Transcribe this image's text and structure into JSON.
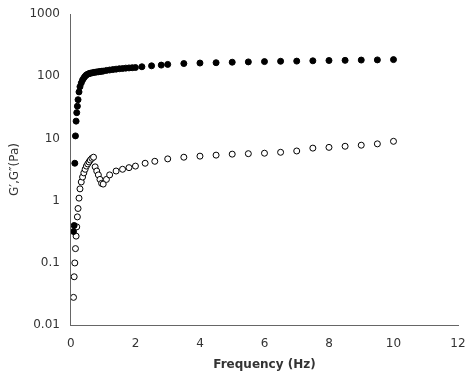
{
  "chart_data": {
    "type": "scatter",
    "x_label": "Frequency (Hz)",
    "y_label": "G′,G″(Pa)",
    "log": "y",
    "grid": false,
    "xlim": [
      0,
      12
    ],
    "xticks": [
      0,
      2,
      4,
      6,
      8,
      10,
      12
    ],
    "ylim": [
      0.01,
      1000
    ],
    "yticks": [
      0.01,
      0.1,
      1,
      10,
      100,
      1000
    ],
    "series": [
      {
        "color": "#000000",
        "marker": "circle",
        "x": [
          0.08,
          0.1,
          0.12,
          0.14,
          0.16,
          0.18,
          0.2,
          0.22,
          0.25,
          0.28,
          0.32,
          0.36,
          0.4,
          0.44,
          0.48,
          0.52,
          0.56,
          0.6,
          0.65,
          0.7,
          0.75,
          0.8,
          0.85,
          0.9,
          0.95,
          1.0,
          1.1,
          1.2,
          1.3,
          1.4,
          1.5,
          1.6,
          1.7,
          1.8,
          1.9,
          2.0,
          2.2,
          2.5,
          2.8,
          3.0,
          3.5,
          4.0,
          4.5,
          5.0,
          5.5,
          6.0,
          6.5,
          7.0,
          7.5,
          8.0,
          8.5,
          9.0,
          9.5,
          10.0
        ],
        "values": [
          0.32,
          0.4,
          4.0,
          11.0,
          19.0,
          26.0,
          33.0,
          42.0,
          56.0,
          68.0,
          78.0,
          87.0,
          94.0,
          100.0,
          105.0,
          108.0,
          110.0,
          112.0,
          113.0,
          115.0,
          116.0,
          117.0,
          118.0,
          119.0,
          120.0,
          121.0,
          124.0,
          126.0,
          128.0,
          130.0,
          132.0,
          133.0,
          135.0,
          136.0,
          137.0,
          138.0,
          142.0,
          147.0,
          151.0,
          155.0,
          160.0,
          163.0,
          165.0,
          168.0,
          170.0,
          172.0,
          174.0,
          175.0,
          177.0,
          179.0,
          180.0,
          182.0,
          183.0,
          185.0
        ]
      },
      {
        "color": "#000000",
        "marker": "open_circle",
        "x": [
          0.08,
          0.1,
          0.12,
          0.14,
          0.16,
          0.18,
          0.2,
          0.22,
          0.25,
          0.28,
          0.32,
          0.36,
          0.4,
          0.44,
          0.48,
          0.52,
          0.56,
          0.6,
          0.65,
          0.7,
          0.75,
          0.8,
          0.85,
          0.9,
          0.95,
          1.0,
          1.1,
          1.2,
          1.4,
          1.6,
          1.8,
          2.0,
          2.3,
          2.6,
          3.0,
          3.5,
          4.0,
          4.5,
          5.0,
          5.5,
          6.0,
          6.5,
          7.0,
          7.5,
          8.0,
          8.5,
          9.0,
          9.5,
          10.0
        ],
        "values": [
          0.028,
          0.06,
          0.1,
          0.17,
          0.27,
          0.38,
          0.55,
          0.75,
          1.1,
          1.55,
          2.0,
          2.4,
          2.8,
          3.2,
          3.6,
          3.9,
          4.2,
          4.5,
          4.8,
          5.0,
          3.5,
          3.0,
          2.6,
          2.2,
          1.9,
          1.85,
          2.2,
          2.6,
          3.0,
          3.2,
          3.4,
          3.6,
          4.0,
          4.3,
          4.7,
          5.0,
          5.2,
          5.4,
          5.6,
          5.7,
          5.8,
          6.0,
          6.3,
          7.0,
          7.2,
          7.5,
          7.8,
          8.2,
          9.0
        ]
      }
    ]
  }
}
